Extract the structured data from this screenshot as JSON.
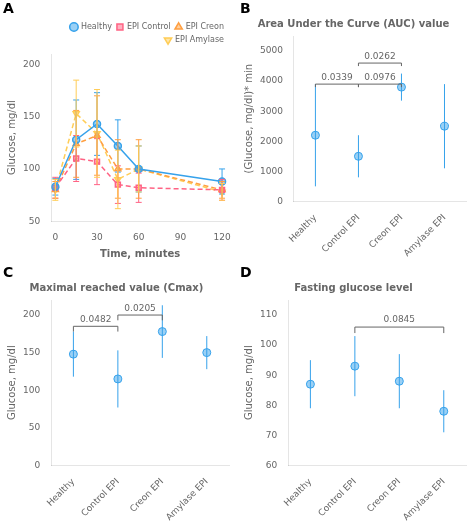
{
  "chart_data": [
    {
      "type": "line",
      "panel_label": "A",
      "xlabel": "Time, minutes",
      "ylabel": "Glucose, mg/dl",
      "x": [
        0,
        15,
        30,
        45,
        60,
        120
      ],
      "series": [
        {
          "name": "Healthy",
          "values": [
            83,
            128,
            143,
            122,
            100,
            88
          ],
          "errors": [
            8,
            38,
            30,
            25,
            22,
            12
          ],
          "marker": "circle",
          "line_style": "solid"
        },
        {
          "name": "EPI Control",
          "values": [
            82,
            110,
            107,
            85,
            82,
            80
          ],
          "errors": [
            10,
            22,
            22,
            18,
            14,
            10
          ],
          "marker": "square",
          "line_style": "dashed"
        },
        {
          "name": "EPI Creon",
          "values": [
            80,
            124,
            132,
            100,
            100,
            80
          ],
          "errors": [
            8,
            32,
            38,
            28,
            28,
            8
          ],
          "marker": "triangle-up",
          "line_style": "dashed"
        },
        {
          "name": "EPI Amylase",
          "values": [
            80,
            153,
            134,
            90,
            100,
            78
          ],
          "errors": [
            10,
            32,
            42,
            28,
            22,
            8
          ],
          "marker": "triangle-down",
          "line_style": "dashed"
        }
      ],
      "xlim": [
        -3,
        125
      ],
      "xticks": [
        0,
        30,
        60,
        90,
        120
      ],
      "ylim": [
        50,
        210
      ],
      "yticks": [
        50,
        100,
        150,
        200
      ],
      "legend": "upper right",
      "grid": false
    },
    {
      "type": "scatter",
      "panel_label": "B",
      "title": "Area Under the Curve (AUC) value",
      "ylabel": "(Glucose, mg/dl)* min",
      "categories": [
        "Healthy",
        "Control EPI",
        "Creon EPI",
        "Amylase EPI"
      ],
      "values": [
        2200,
        1500,
        3800,
        2500
      ],
      "errors": [
        1700,
        700,
        450,
        1400
      ],
      "marker": "circle",
      "ylim": [
        0,
        5500
      ],
      "yticks": [
        0,
        1000,
        2000,
        3000,
        4000,
        5000
      ],
      "grid": false,
      "brackets": [
        {
          "from": "Healthy",
          "to": "Control EPI",
          "y": 3900,
          "tick_end": 3800,
          "label": "0.0339",
          "label_y": 3950
        },
        {
          "from": "Control EPI",
          "to": "Creon EPI",
          "y": 3900,
          "tick_end": 3800,
          "label": "0.0976",
          "label_y": 3950
        },
        {
          "from": "Control EPI",
          "to": "Creon EPI",
          "y": 4600,
          "tick_end": 4500,
          "label": "0.0262",
          "label_y": 4650
        }
      ]
    },
    {
      "type": "scatter",
      "panel_label": "C",
      "title": "Maximal reached value (Cmax)",
      "ylabel": "Glucose, mg/dl",
      "categories": [
        "Healthy",
        "Control EPI",
        "Creon EPI",
        "Amylase EPI"
      ],
      "values": [
        148,
        115,
        178,
        150
      ],
      "errors": [
        30,
        38,
        35,
        22
      ],
      "marker": "circle",
      "ylim": [
        0,
        220
      ],
      "yticks": [
        0,
        50,
        100,
        150,
        200
      ],
      "grid": false,
      "brackets": [
        {
          "from": "Healthy",
          "to": "Control EPI",
          "y": 185,
          "tick_end": 178,
          "label": "0.0482",
          "label_y": 188
        },
        {
          "from": "Control EPI",
          "to": "Creon EPI",
          "y": 200,
          "tick_end": 193,
          "label": "0.0205",
          "label_y": 203
        }
      ]
    },
    {
      "type": "scatter",
      "panel_label": "D",
      "title": "Fasting glucose level",
      "ylabel": "Glucose, mg/dl",
      "categories": [
        "Healthy",
        "Control EPI",
        "Creon EPI",
        "Amylase EPI"
      ],
      "values": [
        87,
        93,
        88,
        78
      ],
      "errors": [
        8,
        10,
        9,
        7
      ],
      "marker": "circle",
      "ylim": [
        60,
        115
      ],
      "yticks": [
        60,
        70,
        80,
        90,
        100,
        110
      ],
      "grid": false,
      "brackets": [
        {
          "from": "Control EPI",
          "to": "Amylase EPI",
          "y": 106,
          "tick_end": 104,
          "label": "0.0845",
          "label_y": 107
        }
      ]
    }
  ]
}
